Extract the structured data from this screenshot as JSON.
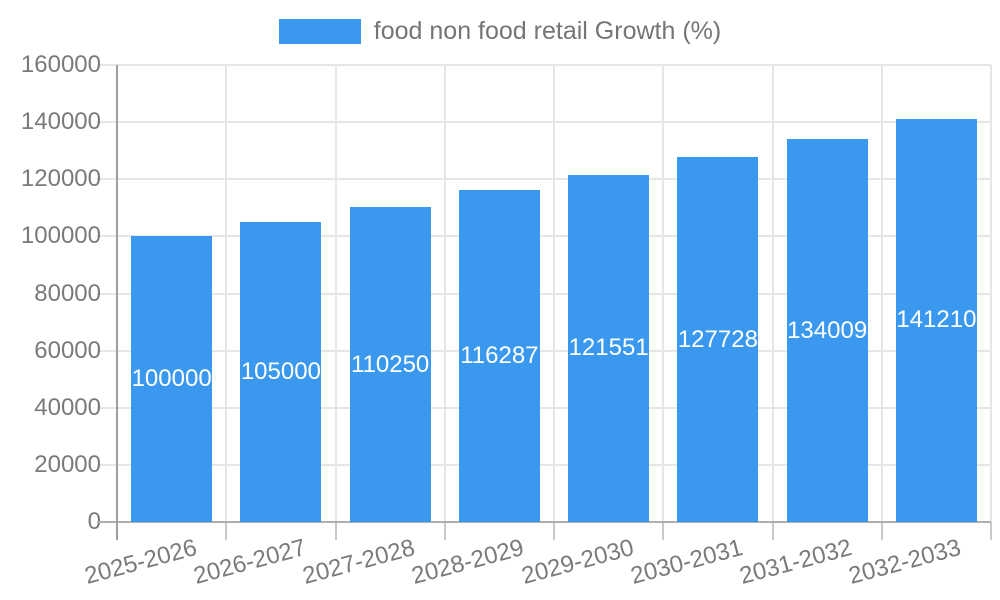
{
  "legend": {
    "label": "food non food retail Growth (%)",
    "position": "top"
  },
  "chart_data": {
    "type": "bar",
    "title": "",
    "series_name": "food non food retail Growth (%)",
    "categories": [
      "2025-2026",
      "2026-2027",
      "2027-2028",
      "2028-2029",
      "2029-2030",
      "2030-2031",
      "2031-2032",
      "2032-2033"
    ],
    "values": [
      100000,
      105000,
      110250,
      116287,
      121551,
      127728,
      134009,
      141210
    ],
    "value_labels": [
      "100000",
      "105000",
      "110250",
      "116287",
      "121551",
      "127728",
      "134009",
      "141210"
    ],
    "xlabel": "",
    "ylabel": "",
    "ylim": [
      0,
      160000
    ],
    "ytick_step": 20000,
    "ytick_labels": [
      "0",
      "20000",
      "40000",
      "60000",
      "80000",
      "100000",
      "120000",
      "140000",
      "160000"
    ],
    "grid": true,
    "legend_position": "top",
    "bar_color": "#3a99ee",
    "bar_label_color": "#ffffff",
    "axis_text_color": "#7a7a7a",
    "grid_color": "#e6e6e6",
    "axis_line_color": "#aeaeae",
    "tick_color": "#c9c9c9",
    "background_color": "#ffffff"
  }
}
